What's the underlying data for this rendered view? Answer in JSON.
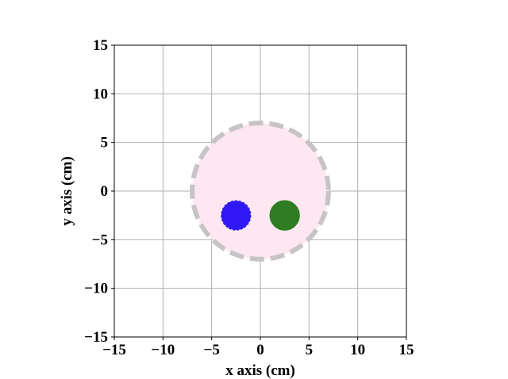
{
  "chart_data": {
    "type": "scatter",
    "title": "",
    "xlabel": "x axis (cm)",
    "ylabel": "y axis (cm)",
    "xlim": [
      -15,
      15
    ],
    "ylim": [
      -15,
      15
    ],
    "xticks": [
      -15,
      -10,
      -5,
      0,
      5,
      10,
      15
    ],
    "yticks": [
      -15,
      -10,
      -5,
      0,
      5,
      10,
      15
    ],
    "xtick_labels": [
      "−15",
      "−10",
      "−5",
      "0",
      "5",
      "10",
      "15"
    ],
    "ytick_labels": [
      "−15",
      "−10",
      "−5",
      "0",
      "5",
      "10",
      "15"
    ],
    "grid": true,
    "colors": {
      "grid": "#b0b0b0",
      "boundary_fill": "#fde8f1",
      "boundary_edge": "#c8c3c6",
      "blue": "#3018f5",
      "green": "#2e7d22"
    },
    "circles": [
      {
        "name": "boundary",
        "cx": 0,
        "cy": 0,
        "r": 7,
        "fill": "#fde8f1",
        "stroke": "#c8c3c6",
        "dashed": true
      },
      {
        "name": "blue",
        "cx": -2.5,
        "cy": -2.5,
        "r": 1.5,
        "fill": "#3018f5",
        "stroke": "#3018f5",
        "dashed": true
      },
      {
        "name": "green",
        "cx": 2.5,
        "cy": -2.5,
        "r": 1.5,
        "fill": "#2e7d22",
        "stroke": "#2e7d22",
        "dashed": false
      }
    ]
  }
}
